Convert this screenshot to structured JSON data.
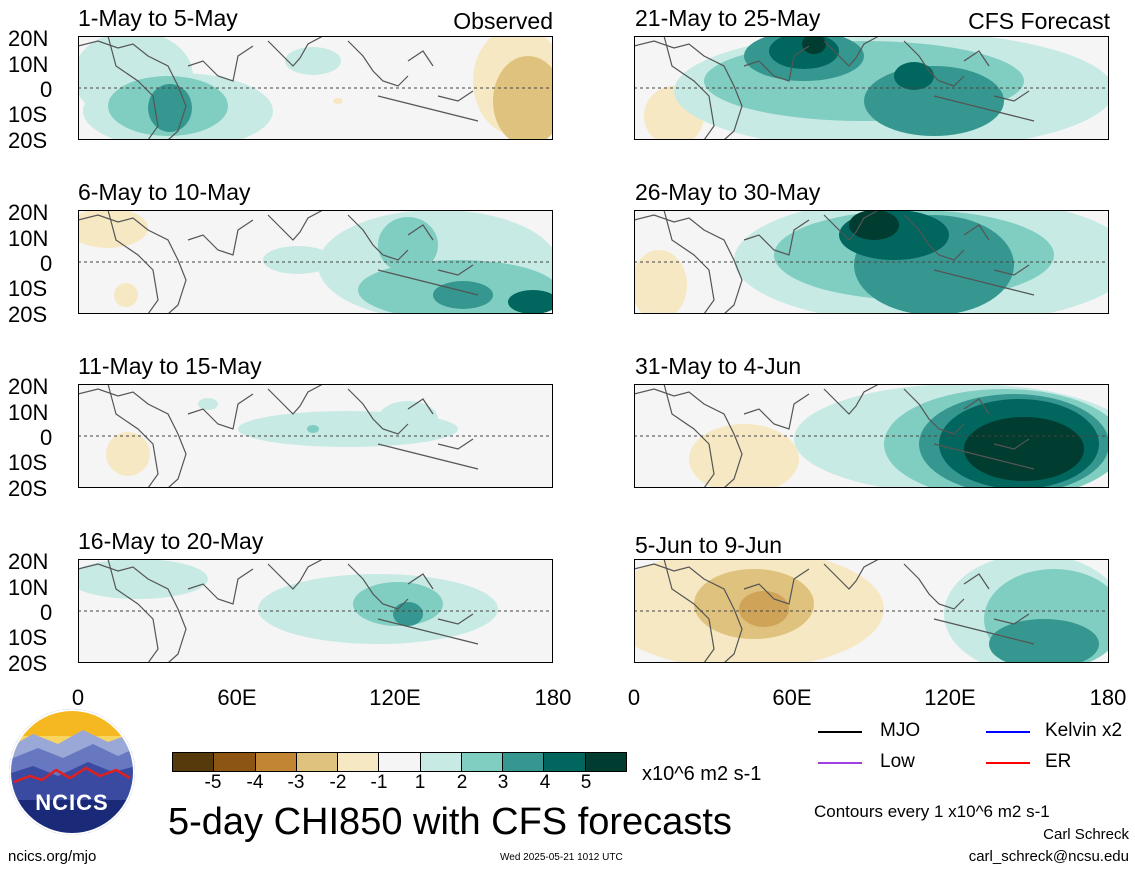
{
  "panels": [
    {
      "title": "1-May to 5-May",
      "label": "Observed"
    },
    {
      "title": "6-May to 10-May",
      "label": ""
    },
    {
      "title": "11-May to 15-May",
      "label": ""
    },
    {
      "title": "16-May to 20-May",
      "label": ""
    },
    {
      "title": "21-May to 25-May",
      "label": "CFS Forecast"
    },
    {
      "title": "26-May to 30-May",
      "label": ""
    },
    {
      "title": "31-May to 4-Jun",
      "label": ""
    },
    {
      "title": "5-Jun to 9-Jun",
      "label": ""
    }
  ],
  "lat_labels": [
    "20N",
    "10N",
    "0",
    "10S",
    "20S"
  ],
  "lon_labels": [
    "0",
    "60E",
    "120E",
    "180"
  ],
  "colorbar": {
    "colors": [
      "#573a0b",
      "#8c5513",
      "#c28534",
      "#dfc27d",
      "#f6e8c3",
      "#f5f5f5",
      "#c7eae5",
      "#80cdc1",
      "#35978f",
      "#01665e",
      "#003c30"
    ],
    "ticks": [
      "-5",
      "-4",
      "-3",
      "-2",
      "-1",
      "1",
      "2",
      "3",
      "4",
      "5"
    ],
    "units": "x10^6 m2 s-1"
  },
  "legend": [
    {
      "label": "MJO",
      "color": "#000000"
    },
    {
      "label": "Kelvin x2",
      "color": "#0000ff"
    },
    {
      "label": "Low",
      "color": "#a040e0"
    },
    {
      "label": "ER",
      "color": "#ff0000"
    }
  ],
  "title": "5-day CHI850 with CFS forecasts",
  "contours_note": "Contours every 1 x10^6 m2 s-1",
  "author": "Carl Schreck",
  "email": "carl_schreck@ncsu.edu",
  "website": "ncics.org/mjo",
  "timestamp": "Wed 2025-05-21 1012 UTC",
  "logo_text": "NCICS"
}
